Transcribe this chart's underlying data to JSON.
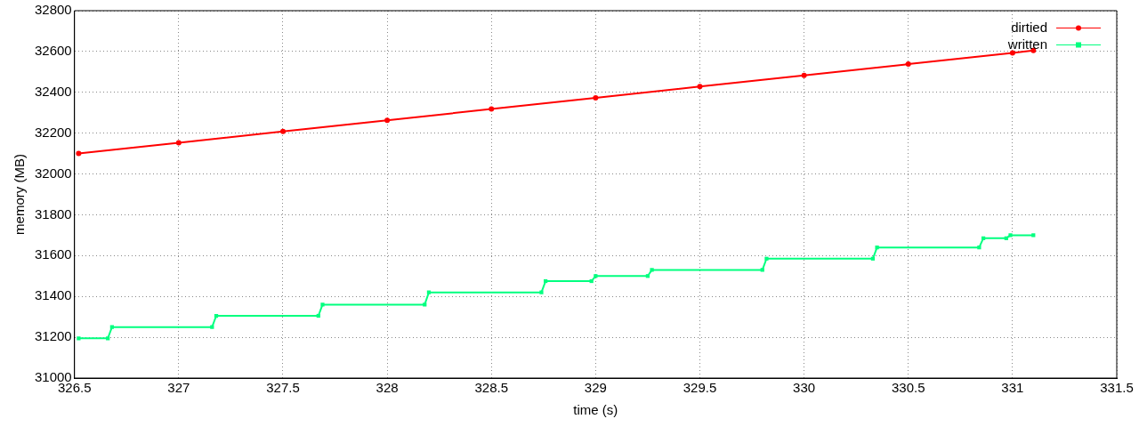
{
  "chart_data": {
    "type": "line",
    "xlabel": "time (s)",
    "ylabel": "memory (MB)",
    "xlim": [
      326.5,
      331.5
    ],
    "xticks": [
      326.5,
      327,
      327.5,
      328,
      328.5,
      329,
      329.5,
      330,
      330.5,
      331,
      331.5
    ],
    "ylim": [
      31000,
      32800
    ],
    "yticks": [
      31000,
      31200,
      31400,
      31600,
      31800,
      32000,
      32200,
      32400,
      32600,
      32800
    ],
    "grid": true,
    "legend": "top right",
    "line_style": "solid",
    "series": [
      {
        "name": "dirtied",
        "color": "#ff0000",
        "marker": "circle",
        "x": [
          326.52,
          327,
          327.5,
          328,
          328.5,
          329,
          329.5,
          330,
          330.5,
          331,
          331.1
        ],
        "values": [
          32100,
          32153,
          32208,
          32263,
          32318,
          32373,
          32428,
          32483,
          32538,
          32593,
          32605
        ]
      },
      {
        "name": "written",
        "color": "#00ff7f",
        "marker": "square",
        "x": [
          326.52,
          326.66,
          326.68,
          327.16,
          327.18,
          327.67,
          327.69,
          328.18,
          328.2,
          328.74,
          328.76,
          328.98,
          329,
          329.25,
          329.27,
          329.8,
          329.82,
          330.33,
          330.35,
          330.84,
          330.86,
          330.97,
          330.99,
          331.1
        ],
        "values": [
          31195,
          31195,
          31250,
          31250,
          31305,
          31305,
          31360,
          31360,
          31420,
          31420,
          31475,
          31475,
          31500,
          31500,
          31530,
          31530,
          31585,
          31585,
          31640,
          31640,
          31685,
          31685,
          31700,
          31700
        ]
      }
    ]
  }
}
